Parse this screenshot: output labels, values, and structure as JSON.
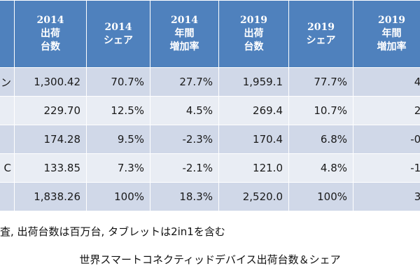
{
  "table": {
    "headers": [
      {
        "lines": [
          ""
        ]
      },
      {
        "lines": [
          "2014",
          "出荷",
          "台数"
        ]
      },
      {
        "lines": [
          "2014",
          "シェア"
        ]
      },
      {
        "lines": [
          "2014",
          "年間",
          "増加率"
        ]
      },
      {
        "lines": [
          "2019",
          "出荷",
          "台数"
        ]
      },
      {
        "lines": [
          "2019",
          "シェア"
        ]
      },
      {
        "lines": [
          "2019",
          "年間",
          "増加率"
        ]
      }
    ],
    "rows": [
      {
        "label": "ン",
        "cells": [
          "1,300.42",
          "70.7%",
          "27.7%",
          "1,959.1",
          "77.7%",
          "4."
        ]
      },
      {
        "label": "",
        "cells": [
          "229.70",
          "12.5%",
          "4.5%",
          "269.4",
          "10.7%",
          "2."
        ]
      },
      {
        "label": "",
        "cells": [
          "174.28",
          "9.5%",
          "-2.3%",
          "170.4",
          "6.8%",
          "-0."
        ]
      },
      {
        "label": "C",
        "cells": [
          "133.85",
          "7.3%",
          "-2.1%",
          "121.0",
          "4.8%",
          "-1."
        ]
      },
      {
        "label": "",
        "cells": [
          "1,838.26",
          "100%",
          "18.3%",
          "2,520.0",
          "100%",
          "3."
        ]
      }
    ]
  },
  "note": "査, 出荷台数は百万台, タブレットは2in1を含む",
  "caption": "世界スマートコネクティッドデバイス出荷台数＆シェア"
}
